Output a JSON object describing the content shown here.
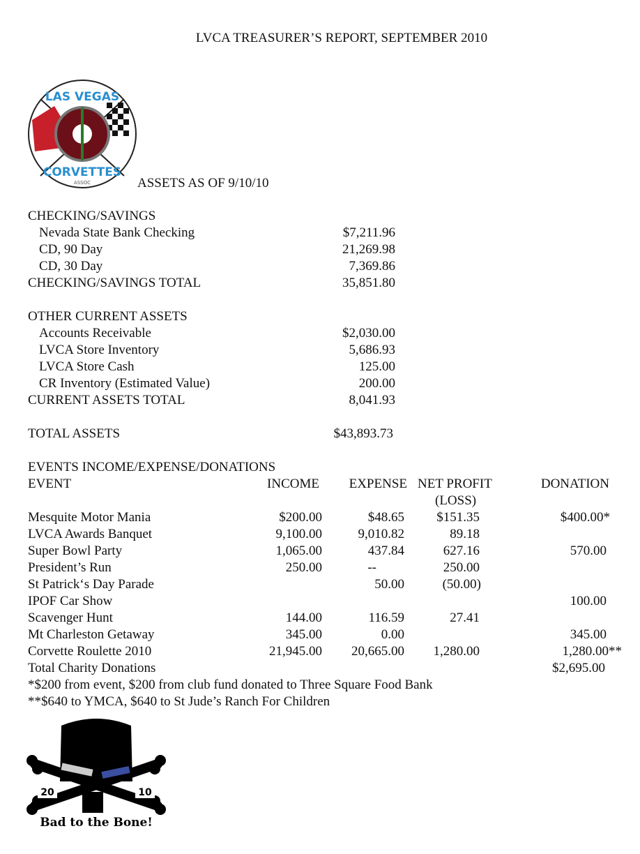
{
  "title": "LVCA TREASURER’S REPORT, SEPTEMBER 2010",
  "logo_top": {
    "text_top": "LAS VEGAS",
    "text_bottom": "CORVETTES",
    "sub": "ASSOC"
  },
  "assets_heading": "ASSETS AS OF 9/10/10",
  "checking": {
    "heading": "CHECKING/SAVINGS",
    "items": [
      {
        "label": "Nevada State Bank Checking",
        "amount": "$7,211.96"
      },
      {
        "label": "CD, 90 Day",
        "amount": "21,269.98"
      },
      {
        "label": "CD, 30 Day",
        "amount": "7,369.86"
      }
    ],
    "total_label": "CHECKING/SAVINGS TOTAL",
    "total": "35,851.80"
  },
  "other": {
    "heading": "OTHER CURRENT ASSETS",
    "items": [
      {
        "label": "Accounts Receivable",
        "amount": "$2,030.00"
      },
      {
        "label": "LVCA Store Inventory",
        "amount": "5,686.93"
      },
      {
        "label": "LVCA Store Cash",
        "amount": "125.00"
      },
      {
        "label": "CR Inventory (Estimated Value)",
        "amount": "200.00"
      }
    ],
    "total_label": "CURRENT ASSETS TOTAL",
    "total": "8,041.93"
  },
  "total_assets": {
    "label": "TOTAL ASSETS",
    "amount": "$43,893.73"
  },
  "events": {
    "heading": "EVENTS INCOME/EXPENSE/DONATIONS",
    "columns": {
      "event": "EVENT",
      "income": "INCOME",
      "expense": "EXPENSE",
      "net": "NET PROFIT",
      "net_sub": "(LOSS)",
      "donation": "DONATION"
    },
    "rows": [
      {
        "event": "Mesquite Motor Mania",
        "income": "$200.00",
        "expense": "$48.65",
        "net": "$151.35",
        "donation": "$400.00*"
      },
      {
        "event": "LVCA Awards Banquet",
        "income": "9,100.00",
        "expense": "9,010.82",
        "net": "89.18",
        "donation": ""
      },
      {
        "event": "Super Bowl Party",
        "income": "1,065.00",
        "expense": "437.84",
        "net": "627.16",
        "donation": "570.00"
      },
      {
        "event": "President’s Run",
        "income": "250.00",
        "expense": "--",
        "net": "250.00",
        "donation": ""
      },
      {
        "event": "St Patrick‘s Day Parade",
        "income": "",
        "expense": "50.00",
        "net": "(50.00)",
        "donation": ""
      },
      {
        "event": "IPOF Car Show",
        "income": "",
        "expense": "",
        "net": "",
        "donation": "100.00"
      },
      {
        "event": "Scavenger Hunt",
        "income": "144.00",
        "expense": "116.59",
        "net": "27.41",
        "donation": ""
      },
      {
        "event": "Mt Charleston Getaway",
        "income": "345.00",
        "expense": "0.00",
        "net": "",
        "donation": "345.00"
      },
      {
        "event": "Corvette Roulette 2010",
        "income": "21,945.00",
        "expense": "20,665.00",
        "net": "1,280.00",
        "donation": "1,280.00**"
      }
    ],
    "total_label": "Total Charity Donations",
    "total": "$2,695.00",
    "footnotes": [
      "*$200 from event, $200 from club fund donated to Three Square Food Bank",
      "**$640 to YMCA, $640 to St Jude’s Ranch For Children"
    ]
  },
  "logo_bottom": {
    "year_left": "20",
    "year_right": "10",
    "caption": "Bad to the Bone!"
  }
}
